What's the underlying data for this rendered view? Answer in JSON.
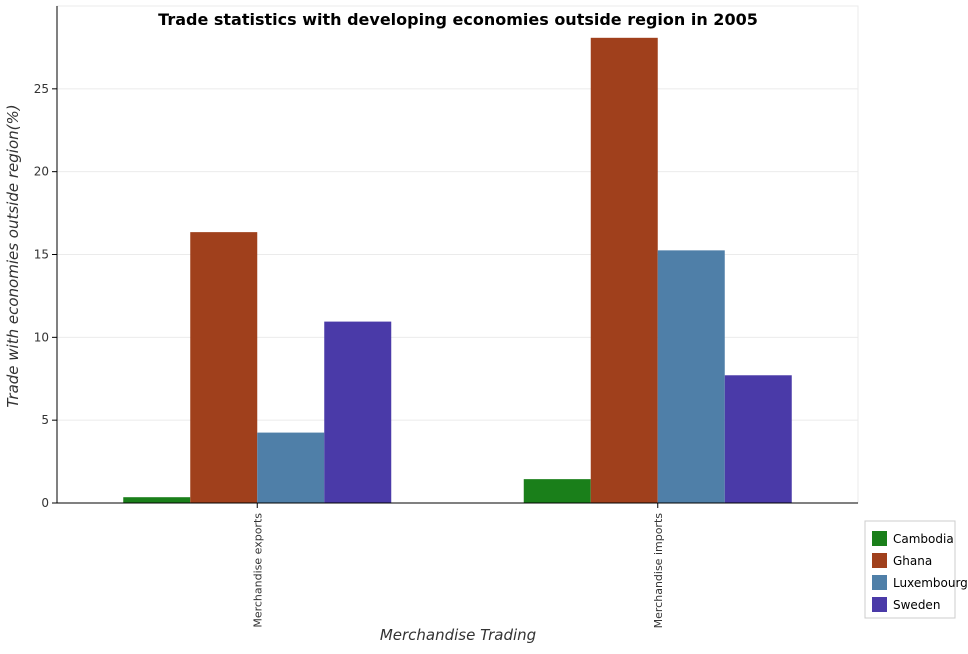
{
  "chart_data": {
    "type": "bar",
    "title": "Trade statistics with developing economies outside region in 2005",
    "xlabel": "Merchandise Trading",
    "ylabel": "Trade with economies outside region(%)",
    "categories": [
      "Merchandise exports",
      "Merchandise imports"
    ],
    "series": [
      {
        "name": "Cambodia",
        "color": "#1a7f1a",
        "values": [
          0.35,
          1.44
        ]
      },
      {
        "name": "Ghana",
        "color": "#a0401c",
        "values": [
          16.35,
          28.08
        ]
      },
      {
        "name": "Luxembourg",
        "color": "#4f7fa8",
        "values": [
          4.25,
          15.25
        ]
      },
      {
        "name": "Sweden",
        "color": "#4a3aa8",
        "values": [
          10.95,
          7.71
        ]
      }
    ],
    "ylim": [
      0,
      30
    ],
    "yticks": [
      0,
      5,
      10,
      15,
      20,
      25
    ],
    "grid": true,
    "legend_position": "bottom-right"
  }
}
